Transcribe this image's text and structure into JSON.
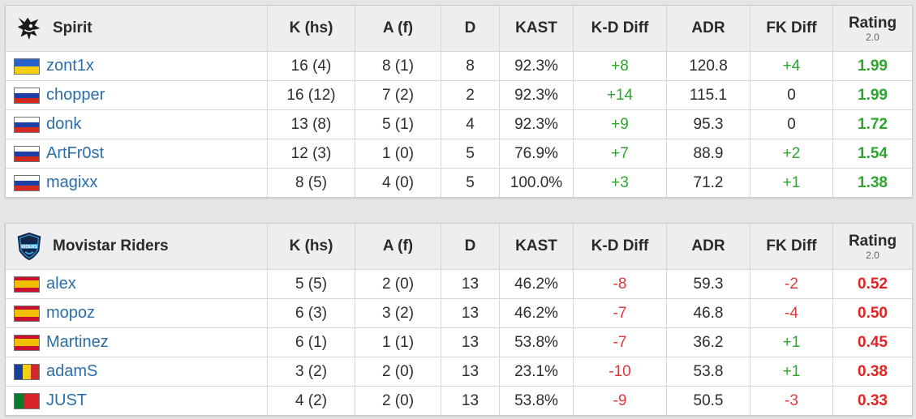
{
  "colors": {
    "positive": "#2fa52f",
    "negative": "#e02424",
    "link": "#2b6ea8"
  },
  "columns": {
    "k": "K (hs)",
    "a": "A (f)",
    "d": "D",
    "kast": "KAST",
    "kd": "K-D Diff",
    "adr": "ADR",
    "fk": "FK Diff",
    "rating": "Rating",
    "rating_sub": "2.0"
  },
  "teams": [
    {
      "name": "Spirit",
      "logo_icon": "spirit-dragon-logo-icon",
      "players": [
        {
          "name": "zont1x",
          "flag": "ukraine-flag-icon",
          "k": "16 (4)",
          "a": "8 (1)",
          "d": "8",
          "kast": "92.3%",
          "kd": "+8",
          "adr": "120.8",
          "fk": "+4",
          "rating": "1.99"
        },
        {
          "name": "chopper",
          "flag": "russia-flag-icon",
          "k": "16 (12)",
          "a": "7 (2)",
          "d": "2",
          "kast": "92.3%",
          "kd": "+14",
          "adr": "115.1",
          "fk": "0",
          "rating": "1.99"
        },
        {
          "name": "donk",
          "flag": "russia-flag-icon",
          "k": "13 (8)",
          "a": "5 (1)",
          "d": "4",
          "kast": "92.3%",
          "kd": "+9",
          "adr": "95.3",
          "fk": "0",
          "rating": "1.72"
        },
        {
          "name": "ArtFr0st",
          "flag": "russia-flag-icon",
          "k": "12 (3)",
          "a": "1 (0)",
          "d": "5",
          "kast": "76.9%",
          "kd": "+7",
          "adr": "88.9",
          "fk": "+2",
          "rating": "1.54"
        },
        {
          "name": "magixx",
          "flag": "russia-flag-icon",
          "k": "8 (5)",
          "a": "4 (0)",
          "d": "5",
          "kast": "100.0%",
          "kd": "+3",
          "adr": "71.2",
          "fk": "+1",
          "rating": "1.38"
        }
      ]
    },
    {
      "name": "Movistar Riders",
      "logo_icon": "movistar-riders-shield-logo-icon",
      "players": [
        {
          "name": "alex",
          "flag": "spain-flag-icon",
          "k": "5 (5)",
          "a": "2 (0)",
          "d": "13",
          "kast": "46.2%",
          "kd": "-8",
          "adr": "59.3",
          "fk": "-2",
          "rating": "0.52"
        },
        {
          "name": "mopoz",
          "flag": "spain-flag-icon",
          "k": "6 (3)",
          "a": "3 (2)",
          "d": "13",
          "kast": "46.2%",
          "kd": "-7",
          "adr": "46.8",
          "fk": "-4",
          "rating": "0.50"
        },
        {
          "name": "Martinez",
          "flag": "spain-flag-icon",
          "k": "6 (1)",
          "a": "1 (1)",
          "d": "13",
          "kast": "53.8%",
          "kd": "-7",
          "adr": "36.2",
          "fk": "+1",
          "rating": "0.45"
        },
        {
          "name": "adamS",
          "flag": "romania-flag-icon",
          "k": "3 (2)",
          "a": "2 (0)",
          "d": "13",
          "kast": "23.1%",
          "kd": "-10",
          "adr": "53.8",
          "fk": "+1",
          "rating": "0.38"
        },
        {
          "name": "JUST",
          "flag": "portugal-flag-icon",
          "k": "4 (2)",
          "a": "2 (0)",
          "d": "13",
          "kast": "53.8%",
          "kd": "-9",
          "adr": "50.5",
          "fk": "-3",
          "rating": "0.33"
        }
      ]
    }
  ]
}
